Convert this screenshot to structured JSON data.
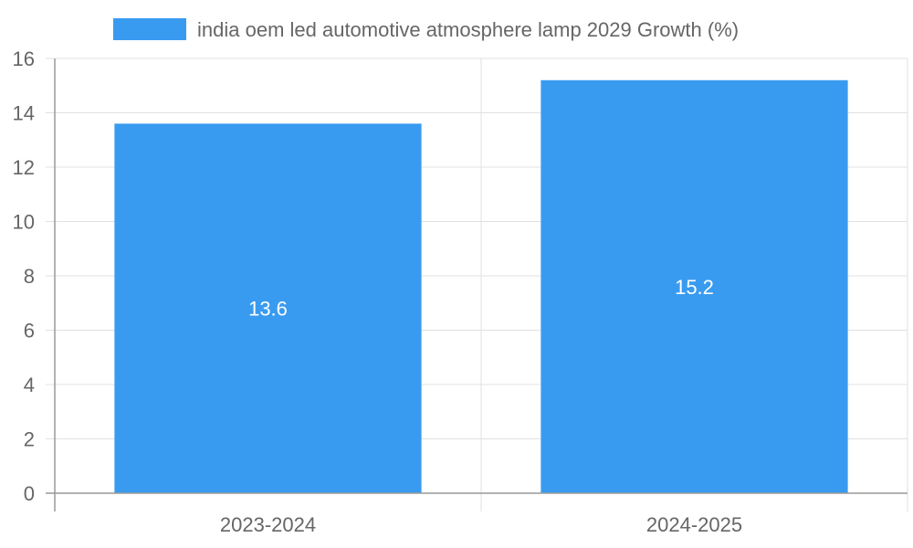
{
  "chart_data": {
    "type": "bar",
    "title": "",
    "xlabel": "",
    "ylabel": "",
    "categories": [
      "2023-2024",
      "2024-2025"
    ],
    "series": [
      {
        "name": "india oem led automotive atmosphere lamp 2029 Growth (%)",
        "values": [
          13.6,
          15.2
        ],
        "value_labels": [
          "13.6",
          "15.2"
        ],
        "color": "#399bf0"
      }
    ],
    "ylim": [
      0,
      16
    ],
    "yticks": [
      "0",
      "2",
      "4",
      "6",
      "8",
      "10",
      "12",
      "14",
      "16"
    ],
    "grid": true,
    "legend_position": "top-center"
  }
}
